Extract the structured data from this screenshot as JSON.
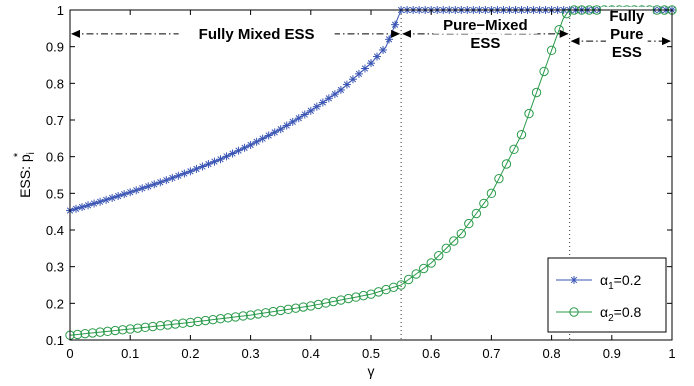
{
  "chart_data": {
    "type": "line",
    "xlabel": "γ",
    "ylabel": "ESS: p",
    "ylabel_sub": "i",
    "ylabel_sup": "*",
    "xlim": [
      0,
      1
    ],
    "ylim": [
      0.1,
      1
    ],
    "x_ticks": [
      0,
      0.1,
      0.2,
      0.3,
      0.4,
      0.5,
      0.6,
      0.7,
      0.8,
      0.9,
      1
    ],
    "x_tick_labels": [
      "0",
      "0.1",
      "0.2",
      "0.3",
      "0.4",
      "0.5",
      "0.6",
      "0.7",
      "0.8",
      "0.9",
      "1"
    ],
    "y_ticks": [
      0.1,
      0.2,
      0.3,
      0.4,
      0.5,
      0.6,
      0.7,
      0.8,
      0.9,
      1
    ],
    "y_tick_labels": [
      "0.1",
      "0.2",
      "0.3",
      "0.4",
      "0.5",
      "0.6",
      "0.7",
      "0.8",
      "0.9",
      "1"
    ],
    "grid": false,
    "legend_placement": "bottom-right",
    "series": [
      {
        "name": "α1=0.2",
        "legend_base": "α",
        "legend_sub": "1",
        "legend_value": "=0.2",
        "color": "#3a55b4",
        "marker": "asterisk",
        "x": [
          0,
          0.05,
          0.1,
          0.15,
          0.2,
          0.25,
          0.3,
          0.35,
          0.4,
          0.45,
          0.5,
          0.525,
          0.55,
          0.6,
          0.7,
          0.8,
          0.9,
          1
        ],
        "y": [
          0.453,
          0.477,
          0.503,
          0.53,
          0.56,
          0.593,
          0.632,
          0.675,
          0.725,
          0.782,
          0.855,
          0.9,
          1,
          1,
          1,
          1,
          1,
          1
        ]
      },
      {
        "name": "α2=0.8",
        "legend_base": "α",
        "legend_sub": "2",
        "legend_value": "=0.8",
        "color": "#2a9a4a",
        "marker": "circle",
        "x": [
          0,
          0.1,
          0.2,
          0.3,
          0.4,
          0.5,
          0.55,
          0.6,
          0.65,
          0.7,
          0.75,
          0.8,
          0.82,
          0.83,
          0.9,
          1
        ],
        "y": [
          0.113,
          0.13,
          0.148,
          0.168,
          0.193,
          0.225,
          0.25,
          0.31,
          0.39,
          0.5,
          0.66,
          0.89,
          0.98,
          1,
          1,
          1
        ]
      }
    ],
    "reference_lines": [
      {
        "x": 0.55
      },
      {
        "x": 0.83
      }
    ],
    "annotations": [
      {
        "lines": [
          "Fully Mixed ESS"
        ],
        "arrow_from": 0,
        "arrow_to": 0.55,
        "arrow_y": 0.935
      },
      {
        "lines": [
          "Pure−Mixed",
          "ESS"
        ],
        "arrow_from": 0.55,
        "arrow_to": 0.83,
        "arrow_y": 0.935
      },
      {
        "lines": [
          "Fully",
          "Pure",
          "ESS"
        ],
        "arrow_from": 0.83,
        "arrow_to": 1,
        "arrow_y": 0.915
      }
    ]
  }
}
